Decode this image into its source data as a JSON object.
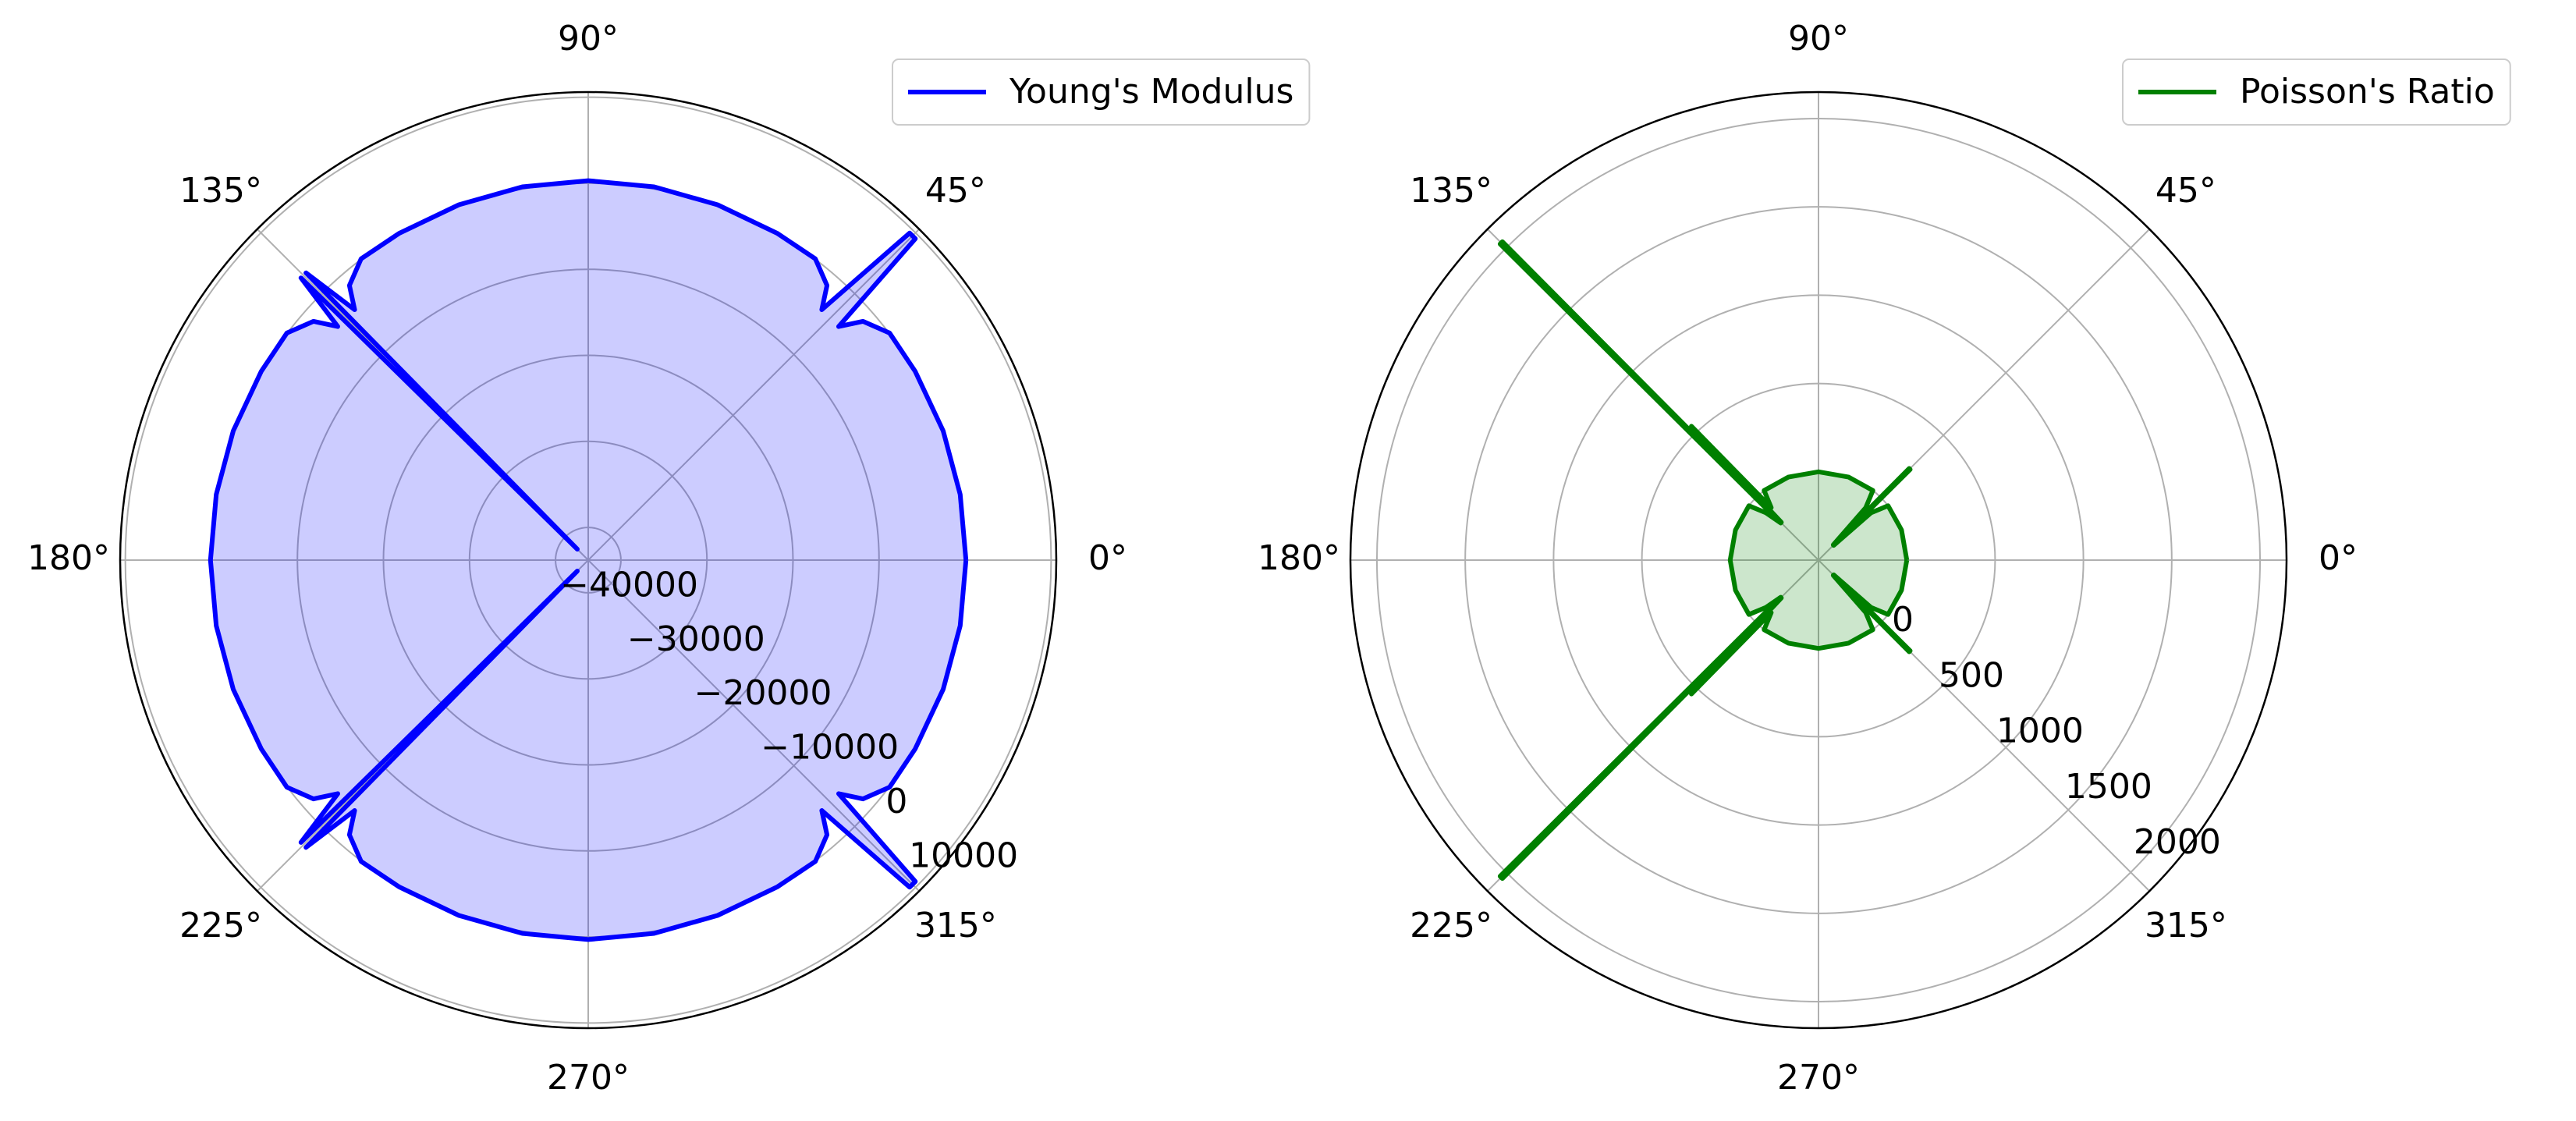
{
  "chart_data": [
    {
      "type": "polar",
      "fill": true,
      "fill_alpha": 0.2,
      "grid": true,
      "legend": "upper right",
      "theta": [
        0,
        10,
        20,
        30,
        37,
        41,
        43,
        44.5,
        45.5,
        47,
        49,
        53,
        60,
        70,
        80,
        90,
        100,
        110,
        120,
        127,
        131,
        133,
        134.5,
        135,
        135.5,
        137,
        139,
        143,
        150,
        160,
        170,
        180,
        190,
        200,
        210,
        217,
        221,
        223,
        224.5,
        225,
        225.5,
        227,
        229,
        233,
        240,
        250,
        260,
        270,
        280,
        290,
        300,
        307,
        311,
        313,
        314.5,
        315.5,
        317,
        319,
        323,
        330,
        340,
        350,
        360
      ],
      "series": [
        {
          "name": "Young's Modulus",
          "color": "#0000ff",
          "values": [
            100,
            100,
            100,
            80,
            50,
            -1500,
            -4000,
            9500,
            9500,
            -4000,
            -1500,
            50,
            80,
            150,
            250,
            300,
            250,
            150,
            80,
            50,
            -1500,
            -4000,
            3000,
            -42000,
            3000,
            -4000,
            -1500,
            50,
            80,
            100,
            100,
            100,
            100,
            100,
            80,
            50,
            -1500,
            -4000,
            3000,
            -42000,
            3000,
            -4000,
            -1500,
            50,
            80,
            150,
            250,
            300,
            250,
            150,
            80,
            50,
            -1500,
            -4000,
            9500,
            9500,
            -4000,
            -1500,
            50,
            80,
            100,
            100,
            100
          ]
        }
      ],
      "rlim": [
        -43800,
        10600
      ],
      "rticks": [
        {
          "value": -40000,
          "label": "−40000"
        },
        {
          "value": -30000,
          "label": "−30000"
        },
        {
          "value": -20000,
          "label": "−20000"
        },
        {
          "value": -10000,
          "label": "−10000"
        },
        0,
        10000
      ],
      "thetaticks": [
        {
          "value": 0,
          "label": "0°"
        },
        {
          "value": 45,
          "label": "45°"
        },
        {
          "value": 90,
          "label": "90°"
        },
        {
          "value": 135,
          "label": "135°"
        },
        {
          "value": 180,
          "label": "180°"
        },
        {
          "value": 225,
          "label": "225°"
        },
        {
          "value": 270,
          "label": "270°"
        },
        {
          "value": 315,
          "label": "315°"
        }
      ]
    },
    {
      "type": "polar",
      "fill": true,
      "fill_alpha": 0.2,
      "grid": true,
      "legend": "upper right",
      "theta": [
        0,
        20,
        38,
        42,
        44,
        44.7,
        45.3,
        46,
        48,
        52,
        70,
        90,
        110,
        128,
        132,
        133.5,
        134.5,
        134.8,
        135.2,
        135.5,
        138,
        142,
        160,
        180,
        200,
        218,
        222,
        224.5,
        224.8,
        225.2,
        225.5,
        226.5,
        228,
        232,
        250,
        270,
        290,
        308,
        312,
        314,
        314.7,
        315.3,
        316,
        318,
        322,
        340,
        360
      ],
      "series": [
        {
          "name": "Poisson's Ratio",
          "color": "#008000",
          "values": [
            0,
            0,
            0,
            -100,
            -380,
            230,
            230,
            -380,
            -100,
            0,
            0,
            0,
            0,
            0,
            -100,
            545,
            -200,
            2040,
            2040,
            -200,
            -100,
            0,
            0,
            0,
            0,
            0,
            -100,
            -200,
            2040,
            2040,
            -200,
            545,
            -100,
            0,
            0,
            0,
            0,
            0,
            -100,
            -380,
            230,
            230,
            -380,
            -100,
            0,
            0,
            0
          ]
        }
      ],
      "rlim": [
        -500,
        2150
      ],
      "rticks": [
        0,
        500,
        1000,
        1500,
        2000
      ],
      "thetaticks": [
        {
          "value": 0,
          "label": "0°"
        },
        {
          "value": 45,
          "label": "45°"
        },
        {
          "value": 90,
          "label": "90°"
        },
        {
          "value": 135,
          "label": "135°"
        },
        {
          "value": 180,
          "label": "180°"
        },
        {
          "value": 225,
          "label": "225°"
        },
        {
          "value": 270,
          "label": "270°"
        },
        {
          "value": 315,
          "label": "315°"
        }
      ]
    }
  ]
}
